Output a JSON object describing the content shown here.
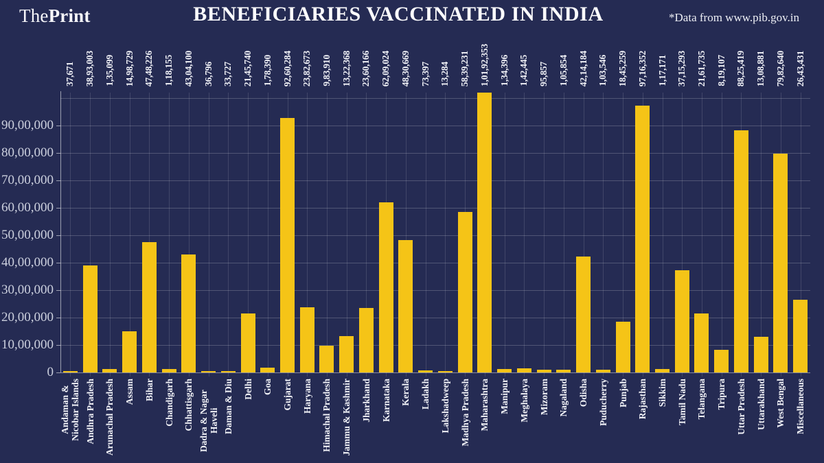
{
  "header": {
    "logo_the": "The",
    "logo_print": "Print",
    "title": "BENEFICIARIES VACCINATED IN INDIA",
    "source": "*Data from www.pib.gov.in"
  },
  "colors": {
    "background": "#252b53",
    "bar": "#f5c417",
    "text": "#f1f2f7",
    "axis_label": "#ccd0de"
  },
  "chart_data": {
    "type": "bar",
    "title": "BENEFICIARIES VACCINATED IN INDIA",
    "xlabel": "",
    "ylabel": "",
    "grid": true,
    "legend": false,
    "ylim": [
      0,
      10192353
    ],
    "y_ticks": [
      {
        "value": 0,
        "label": "0"
      },
      {
        "value": 1000000,
        "label": "10,00,000"
      },
      {
        "value": 2000000,
        "label": "20,00,000"
      },
      {
        "value": 3000000,
        "label": "30,00,000"
      },
      {
        "value": 4000000,
        "label": "40,00,000"
      },
      {
        "value": 5000000,
        "label": "50,00,000"
      },
      {
        "value": 6000000,
        "label": "60,00,000"
      },
      {
        "value": 7000000,
        "label": "70,00,000"
      },
      {
        "value": 8000000,
        "label": "80,00,000"
      },
      {
        "value": 9000000,
        "label": "90,00,000"
      }
    ],
    "categories": [
      "Andaman &\nNicobar Islands",
      "Andhra Pradesh",
      "Arunachal Pradesh",
      "Assam",
      "Bihar",
      "Chandigarh",
      "Chhattisgarh",
      "Dadra & Nagar Haveli",
      "Daman & Diu",
      "Delhi",
      "Goa",
      "Gujarat",
      "Haryana",
      "Himachal Pradesh",
      "Jammu & Kashmir",
      "Jharkhand",
      "Karnataka",
      "Kerala",
      "Ladakh",
      "Lakshadweep",
      "Madhya Pradesh",
      "Maharashtra",
      "Manipur",
      "Meghalaya",
      "Mizoram",
      "Nagaland",
      "Odisha",
      "Puducherry",
      "Punjab",
      "Rajasthan",
      "Sikkim",
      "Tamil Nadu",
      "Telangana",
      "Tripura",
      "Uttar Pradesh",
      "Uttarakhand",
      "West Bengal",
      "Miscellaneous"
    ],
    "values": [
      37671,
      3893003,
      135099,
      1498729,
      4748226,
      118155,
      4304100,
      36796,
      33727,
      2145740,
      178390,
      9260284,
      2382673,
      983910,
      1322368,
      2360166,
      6209024,
      4830669,
      73397,
      13284,
      5839231,
      10192353,
      134396,
      142445,
      95857,
      105854,
      4214184,
      103546,
      1845259,
      9716352,
      117171,
      3715293,
      2161735,
      819107,
      8825419,
      1308881,
      7982640,
      2643431
    ],
    "value_labels": [
      "37,671",
      "38,93,003",
      "1,35,099",
      "14,98,729",
      "47,48,226",
      "1,18,155",
      "43,04,100",
      "36,796",
      "33,727",
      "21,45,740",
      "1,78,390",
      "92,60,284",
      "23,82,673",
      "9,83,910",
      "13,22,368",
      "23,60,166",
      "62,09,024",
      "48,30,669",
      "73,397",
      "13,284",
      "58,39,231",
      "1,01,92,353",
      "1,34,396",
      "1,42,445",
      "95,857",
      "1,05,854",
      "42,14,184",
      "1,03,546",
      "18,45,259",
      "97,16,352",
      "1,17,171",
      "37,15,293",
      "21,61,735",
      "8,19,107",
      "88,25,419",
      "13,08,881",
      "79,82,640",
      "26,43,431"
    ]
  }
}
